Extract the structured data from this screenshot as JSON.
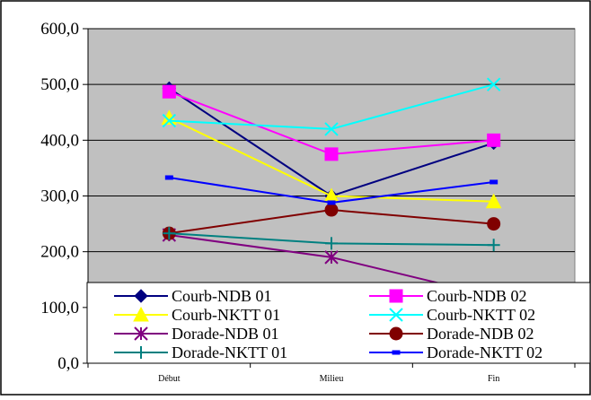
{
  "chart_data": {
    "type": "line",
    "title": "",
    "xlabel": "",
    "ylabel": "",
    "categories": [
      "Début",
      "Milieu",
      "Fin"
    ],
    "ylim": [
      0,
      600
    ],
    "yticks": [
      "0,0",
      "100,0",
      "200,0",
      "300,0",
      "400,0",
      "500,0",
      "600,0"
    ],
    "yticks_values": [
      0,
      100,
      200,
      300,
      400,
      500,
      600
    ],
    "grid": "horizontal",
    "plot_background": "#c0c0c0",
    "legend_position": "bottom",
    "series": [
      {
        "name": "Courb-NDB 01",
        "values": [
          493,
          300,
          395
        ],
        "color": "#000080",
        "marker": "diamond"
      },
      {
        "name": "Courb-NDB 02",
        "values": [
          487,
          375,
          400
        ],
        "color": "#ff00ff",
        "marker": "square"
      },
      {
        "name": "Courb-NKTT 01",
        "values": [
          440,
          300,
          290
        ],
        "color": "#ffff00",
        "marker": "triangle"
      },
      {
        "name": "Courb-NKTT 02",
        "values": [
          435,
          420,
          500
        ],
        "color": "#00ffff",
        "marker": "x"
      },
      {
        "name": "Dorade-NDB 01",
        "values": [
          230,
          190,
          120
        ],
        "color": "#800080",
        "marker": "star"
      },
      {
        "name": "Dorade-NDB 02",
        "values": [
          233,
          275,
          250
        ],
        "color": "#800000",
        "marker": "circle"
      },
      {
        "name": "Dorade-NKTT 01",
        "values": [
          233,
          215,
          212
        ],
        "color": "#008080",
        "marker": "plus"
      },
      {
        "name": "Dorade-NKTT 02",
        "values": [
          333,
          288,
          325
        ],
        "color": "#0000ff",
        "marker": "dash"
      }
    ]
  }
}
